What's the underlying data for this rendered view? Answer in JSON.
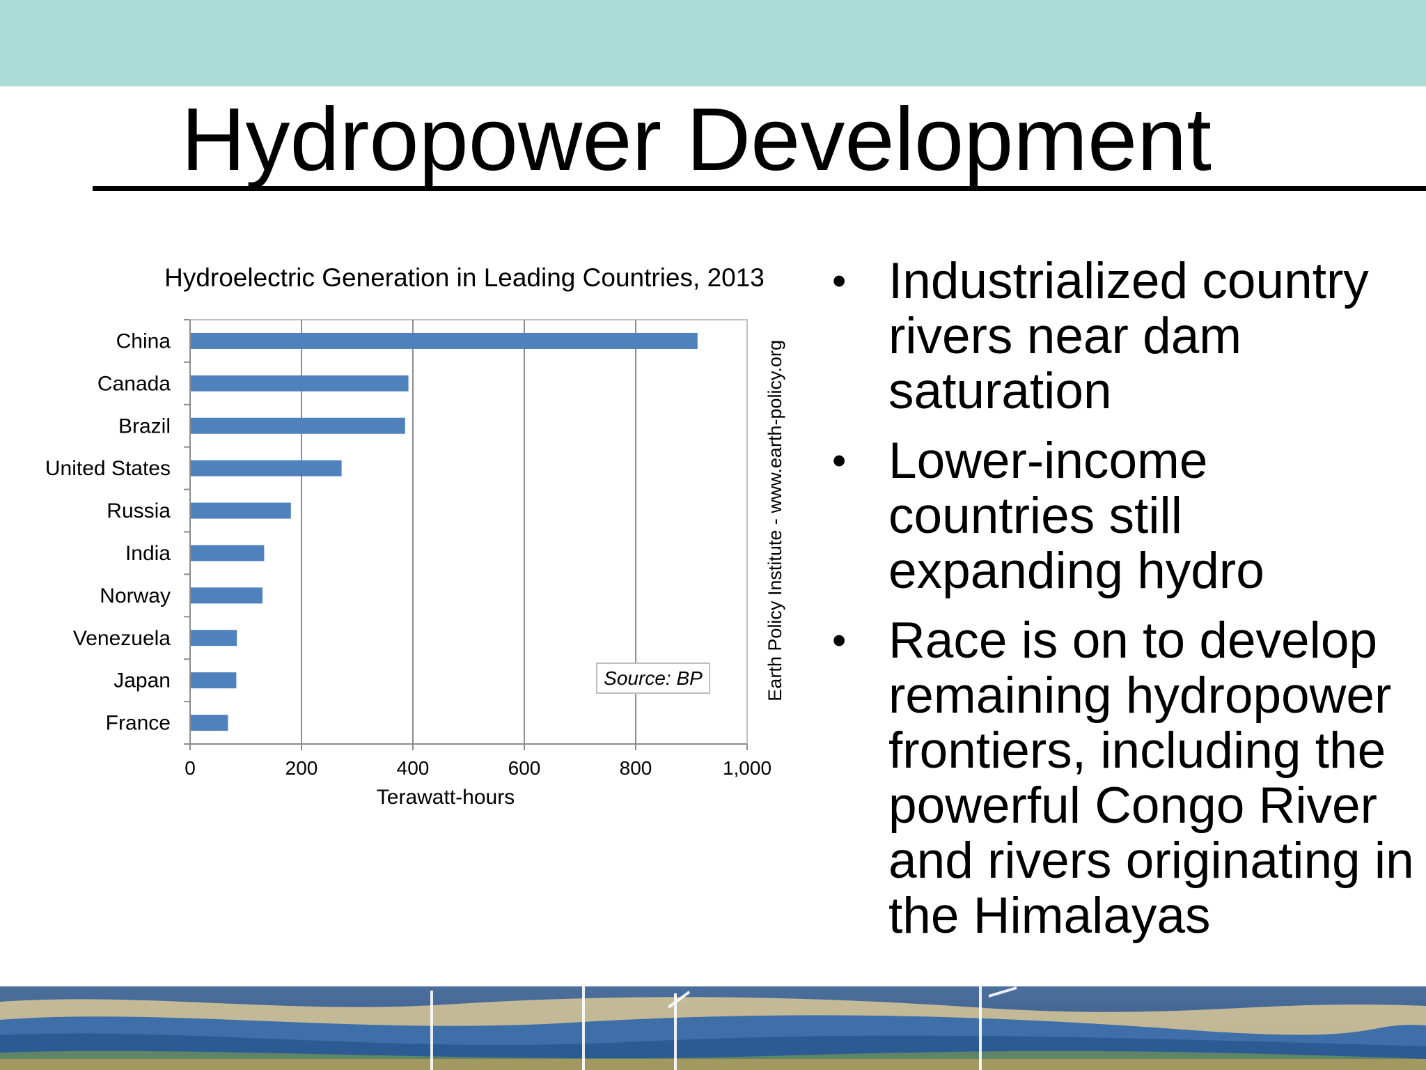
{
  "slide": {
    "title": "Hydropower Development",
    "colors": {
      "top_band": "#abdcd6",
      "bar": "#4f81bd",
      "bottom_band": "#3c6aa3"
    }
  },
  "bullets": [
    {
      "text": "Industrialized country rivers near dam saturation"
    },
    {
      "text": "Lower-income countries still expanding hydro"
    },
    {
      "text": "Race is on to develop remaining hydropower frontiers, including the powerful Congo River and rivers originating in the Himalayas"
    }
  ],
  "chart_data": {
    "type": "bar",
    "orientation": "horizontal",
    "title": "Hydroelectric Generation in Leading Countries, 2013",
    "xlabel": "Terawatt-hours",
    "ylabel": "",
    "categories": [
      "China",
      "Canada",
      "Brazil",
      "United States",
      "Russia",
      "India",
      "Norway",
      "Venezuela",
      "Japan",
      "France"
    ],
    "values": [
      911,
      392,
      386,
      272,
      181,
      133,
      130,
      84,
      83,
      68
    ],
    "xlim": [
      0,
      1000
    ],
    "xticks": [
      0,
      200,
      400,
      600,
      800,
      1000
    ],
    "xtick_labels": [
      "0",
      "200",
      "400",
      "600",
      "800",
      "1,000"
    ],
    "grid": "vertical",
    "bar_color": "#4f81bd",
    "source_note": "Source: BP",
    "credit": "Earth Policy Institute - www.earth-policy.org"
  }
}
